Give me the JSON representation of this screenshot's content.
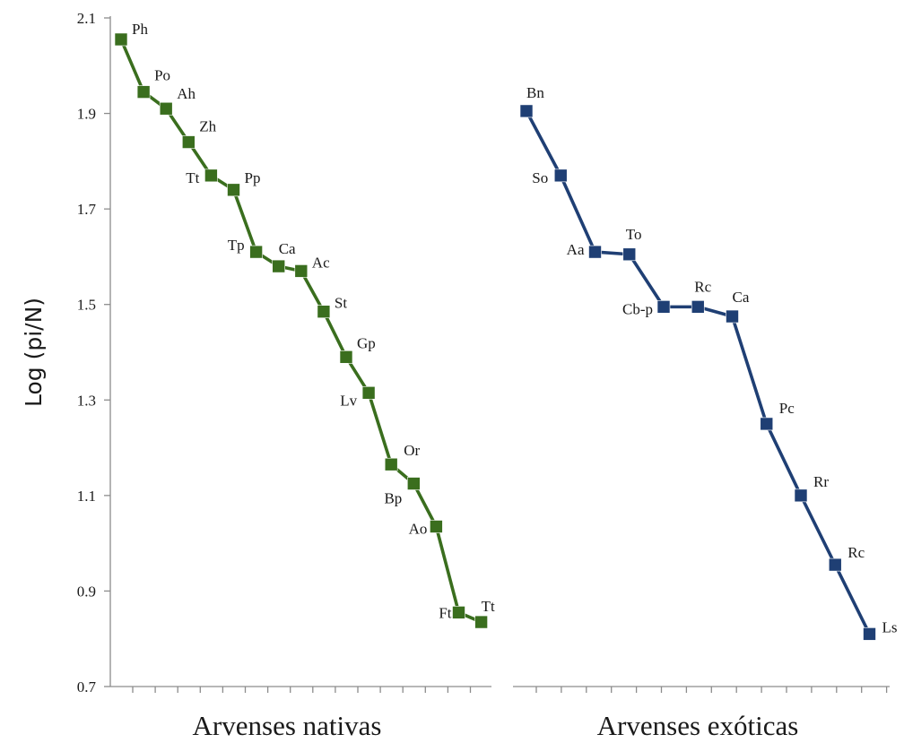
{
  "chart_data": {
    "type": "line",
    "ylabel": "Log (pi/N)",
    "ylim": [
      0.7,
      2.1
    ],
    "yticks": [
      "0.7",
      "0.9",
      "1.1",
      "1.3",
      "1.5",
      "1.7",
      "1.9",
      "2.1"
    ],
    "grid": false,
    "panels": [
      {
        "xlabel": "Arvenses nativas",
        "color": "#3a6e1e",
        "labels": [
          "Ph",
          "Po",
          "Ah",
          "Zh",
          "Tt",
          "Pp",
          "Tp",
          "Ca",
          "Ac",
          "St",
          "Gp",
          "Lv",
          "Or",
          "Bp",
          "Ao",
          "Ft",
          "Tt"
        ],
        "values": [
          2.055,
          1.945,
          1.91,
          1.84,
          1.77,
          1.74,
          1.61,
          1.58,
          1.57,
          1.485,
          1.39,
          1.315,
          1.165,
          1.125,
          1.035,
          0.855,
          0.835
        ]
      },
      {
        "xlabel": "Arvenses exóticas",
        "color": "#1f3f74",
        "labels": [
          "Bn",
          "So",
          "Aa",
          "To",
          "Cb-p",
          "Rc",
          "Ca",
          "Pc",
          "Rr",
          "Rc",
          "Ls"
        ],
        "values": [
          1.905,
          1.77,
          1.61,
          1.605,
          1.495,
          1.495,
          1.475,
          1.25,
          1.1,
          0.955,
          0.81
        ]
      }
    ]
  }
}
